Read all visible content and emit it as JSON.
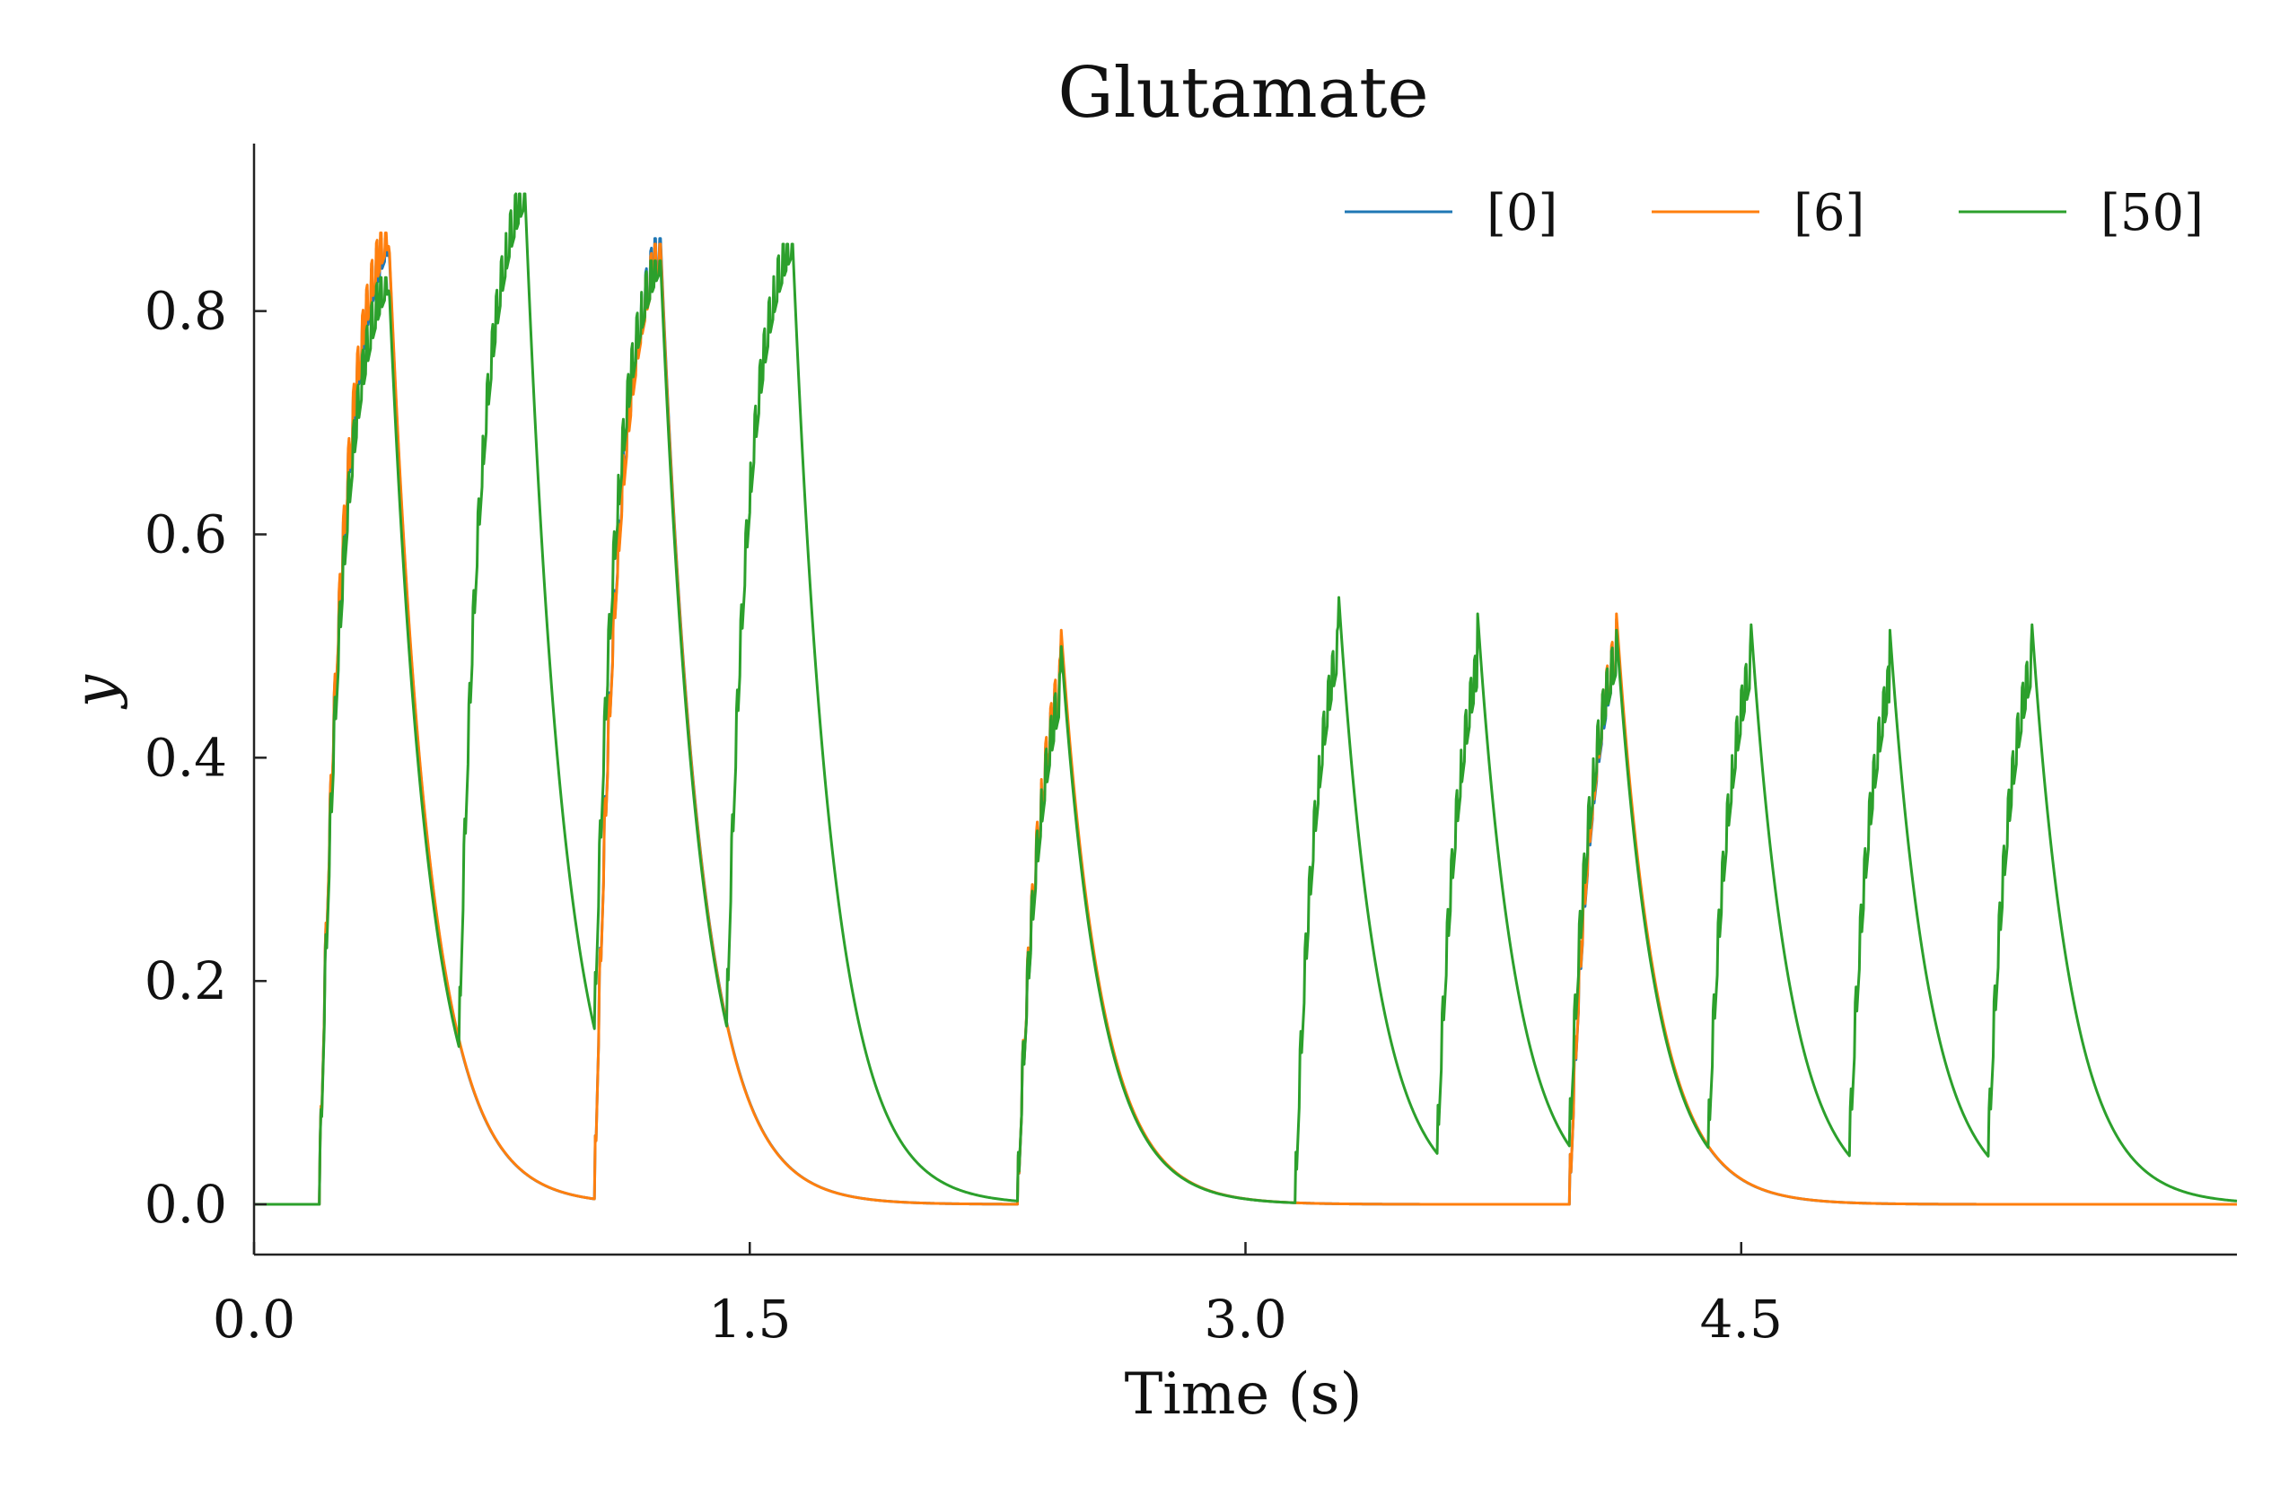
{
  "chart_data": {
    "type": "line",
    "title": "Glutamate",
    "xlabel": "Time (s)",
    "ylabel": "y",
    "xlim": [
      0,
      6.0
    ],
    "ylim": [
      -0.045,
      0.95
    ],
    "xticks": [
      0.0,
      1.5,
      3.0,
      4.5
    ],
    "xtick_labels": [
      "0.0",
      "1.5",
      "3.0",
      "4.5"
    ],
    "yticks": [
      0.0,
      0.2,
      0.4,
      0.6,
      0.8
    ],
    "ytick_labels": [
      "0.0",
      "0.2",
      "0.4",
      "0.6",
      "0.8"
    ],
    "legend_position": "top-right",
    "grid": false,
    "tau_decay": 0.12,
    "series": [
      {
        "name": "[0]",
        "color": "#1f77b4",
        "bursts": [
          {
            "start": 0.2,
            "end": 0.41,
            "peak": 0.865
          },
          {
            "start": 1.03,
            "end": 1.23,
            "peak": 0.865
          },
          {
            "start": 2.31,
            "end": 2.44,
            "peak": 0.52
          },
          {
            "start": 3.98,
            "end": 4.12,
            "peak": 0.535
          }
        ]
      },
      {
        "name": "[6]",
        "color": "#ff7f0e",
        "bursts": [
          {
            "start": 0.2,
            "end": 0.41,
            "peak": 0.87
          },
          {
            "start": 1.03,
            "end": 1.23,
            "peak": 0.86
          },
          {
            "start": 2.31,
            "end": 2.44,
            "peak": 0.525
          },
          {
            "start": 3.98,
            "end": 4.12,
            "peak": 0.54
          }
        ]
      },
      {
        "name": "[50]",
        "color": "#2ca02c",
        "bursts": [
          {
            "start": 0.2,
            "end": 0.41,
            "peak": 0.83
          },
          {
            "start": 0.62,
            "end": 0.82,
            "peak": 0.905
          },
          {
            "start": 1.03,
            "end": 1.23,
            "peak": 0.845
          },
          {
            "start": 1.43,
            "end": 1.63,
            "peak": 0.86
          },
          {
            "start": 2.31,
            "end": 2.44,
            "peak": 0.51
          },
          {
            "start": 3.15,
            "end": 3.28,
            "peak": 0.555
          },
          {
            "start": 3.58,
            "end": 3.7,
            "peak": 0.54
          },
          {
            "start": 3.98,
            "end": 4.12,
            "peak": 0.525
          },
          {
            "start": 4.4,
            "end": 4.53,
            "peak": 0.53
          },
          {
            "start": 4.83,
            "end": 4.95,
            "peak": 0.525
          },
          {
            "start": 5.25,
            "end": 5.38,
            "peak": 0.53
          }
        ]
      }
    ]
  }
}
